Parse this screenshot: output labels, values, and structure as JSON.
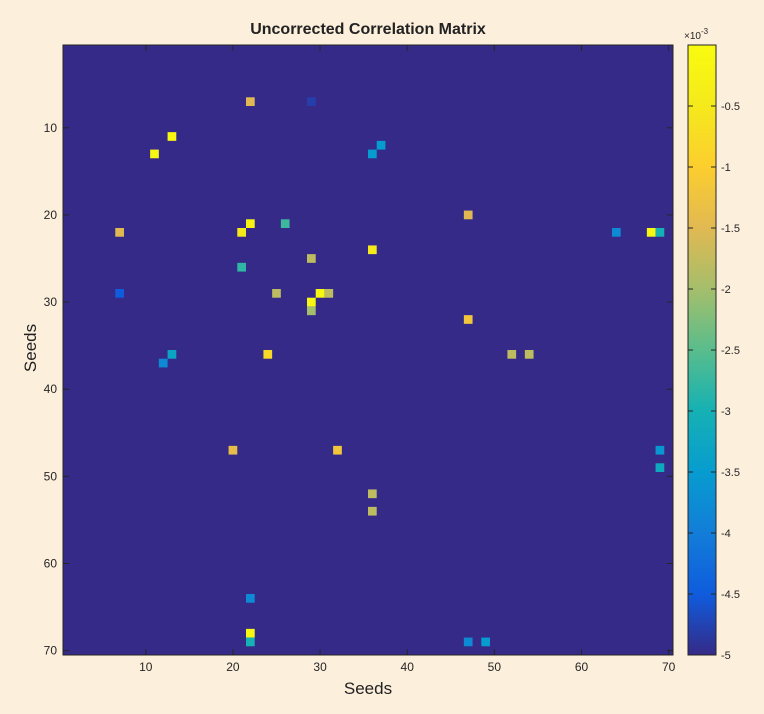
{
  "chart_data": {
    "type": "heatmap",
    "title": "Uncorrected Correlation Matrix",
    "xlabel": "Seeds",
    "ylabel": "Seeds",
    "x_range": [
      1,
      70
    ],
    "y_range": [
      1,
      70
    ],
    "y_reversed": true,
    "x_ticks": [
      "10",
      "20",
      "30",
      "40",
      "50",
      "60",
      "70"
    ],
    "x_tick_values": [
      10,
      20,
      30,
      40,
      50,
      60,
      70
    ],
    "y_ticks": [
      "10",
      "20",
      "30",
      "40",
      "50",
      "60",
      "70"
    ],
    "y_tick_values": [
      10,
      20,
      30,
      40,
      50,
      60,
      70
    ],
    "background_value": -0.005,
    "colorbar": {
      "exponent_label": "×10",
      "exponent": "-3",
      "range": [
        -0.005,
        0
      ],
      "tick_values": [
        -0.0005,
        -0.001,
        -0.0015,
        -0.002,
        -0.0025,
        -0.003,
        -0.0035,
        -0.004,
        -0.0045,
        -0.005
      ],
      "tick_labels": [
        "-0.5",
        "-1",
        "-1.5",
        "-2",
        "-2.5",
        "-3",
        "-3.5",
        "-4",
        "-4.5",
        "-5"
      ],
      "colormap": "parula"
    },
    "cells": [
      {
        "x": 22,
        "y": 7,
        "v": -0.0015
      },
      {
        "x": 29,
        "y": 7,
        "v": -0.0048
      },
      {
        "x": 13,
        "y": 11,
        "v": -0.0001
      },
      {
        "x": 37,
        "y": 12,
        "v": -0.0035
      },
      {
        "x": 11,
        "y": 13,
        "v": -0.0001
      },
      {
        "x": 36,
        "y": 13,
        "v": -0.0035
      },
      {
        "x": 47,
        "y": 20,
        "v": -0.0015
      },
      {
        "x": 22,
        "y": 21,
        "v": -0.0002
      },
      {
        "x": 26,
        "y": 21,
        "v": -0.0027
      },
      {
        "x": 7,
        "y": 22,
        "v": -0.0015
      },
      {
        "x": 21,
        "y": 22,
        "v": -0.0005
      },
      {
        "x": 64,
        "y": 22,
        "v": -0.0038
      },
      {
        "x": 68,
        "y": 22,
        "v": -0.0001
      },
      {
        "x": 69,
        "y": 22,
        "v": -0.003
      },
      {
        "x": 36,
        "y": 24,
        "v": -0.0005
      },
      {
        "x": 29,
        "y": 25,
        "v": -0.0018
      },
      {
        "x": 21,
        "y": 26,
        "v": -0.0028
      },
      {
        "x": 7,
        "y": 29,
        "v": -0.0045
      },
      {
        "x": 25,
        "y": 29,
        "v": -0.0018
      },
      {
        "x": 30,
        "y": 29,
        "v": -0.0001
      },
      {
        "x": 31,
        "y": 29,
        "v": -0.0018
      },
      {
        "x": 29,
        "y": 30,
        "v": -0.0001
      },
      {
        "x": 29,
        "y": 31,
        "v": -0.002
      },
      {
        "x": 47,
        "y": 32,
        "v": -0.0012
      },
      {
        "x": 13,
        "y": 36,
        "v": -0.0033
      },
      {
        "x": 24,
        "y": 36,
        "v": -0.0008
      },
      {
        "x": 52,
        "y": 36,
        "v": -0.0018
      },
      {
        "x": 54,
        "y": 36,
        "v": -0.0018
      },
      {
        "x": 12,
        "y": 37,
        "v": -0.0038
      },
      {
        "x": 20,
        "y": 47,
        "v": -0.0014
      },
      {
        "x": 32,
        "y": 47,
        "v": -0.0012
      },
      {
        "x": 69,
        "y": 47,
        "v": -0.0036
      },
      {
        "x": 69,
        "y": 49,
        "v": -0.0032
      },
      {
        "x": 36,
        "y": 52,
        "v": -0.0018
      },
      {
        "x": 36,
        "y": 54,
        "v": -0.0018
      },
      {
        "x": 22,
        "y": 64,
        "v": -0.0038
      },
      {
        "x": 22,
        "y": 68,
        "v": -0.0001
      },
      {
        "x": 22,
        "y": 69,
        "v": -0.003
      },
      {
        "x": 47,
        "y": 69,
        "v": -0.0038
      },
      {
        "x": 49,
        "y": 69,
        "v": -0.0035
      }
    ]
  }
}
